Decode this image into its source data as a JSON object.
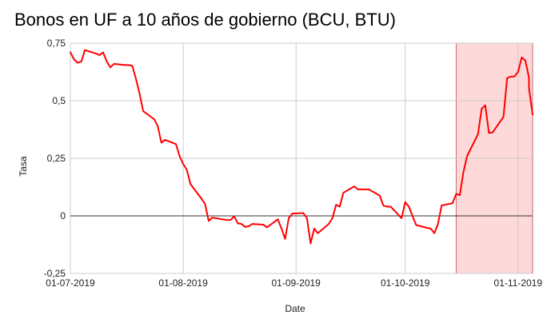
{
  "chart_data": {
    "type": "line",
    "title": "Bonos en UF a 10 años de gobierno (BCU, BTU)",
    "xlabel": "Date",
    "ylabel": "Tasa",
    "x_range": [
      "2019-07-01",
      "2019-11-05"
    ],
    "ylim": [
      -0.25,
      0.75
    ],
    "y_ticks": [
      {
        "value": 0.75,
        "label": "0,75"
      },
      {
        "value": 0.5,
        "label": "0,5"
      },
      {
        "value": 0.25,
        "label": "0,25"
      },
      {
        "value": 0,
        "label": "0"
      },
      {
        "value": -0.25,
        "label": "-0,25"
      }
    ],
    "x_ticks": [
      {
        "date": "2019-07-01",
        "label": "01-07-2019"
      },
      {
        "date": "2019-08-01",
        "label": "01-08-2019"
      },
      {
        "date": "2019-09-01",
        "label": "01-09-2019"
      },
      {
        "date": "2019-10-01",
        "label": "01-10-2019"
      },
      {
        "date": "2019-11-01",
        "label": "01-11-2019"
      }
    ],
    "grid": true,
    "highlight": {
      "from": "2019-10-15",
      "to": "2019-11-05",
      "color": "#fdd9d9",
      "border_color": "#c4686b"
    },
    "series": [
      {
        "color": "#ff0000",
        "points": [
          {
            "x": "2019-07-01",
            "y": 0.71
          },
          {
            "x": "2019-07-02",
            "y": 0.68
          },
          {
            "x": "2019-07-03",
            "y": 0.665
          },
          {
            "x": "2019-07-04",
            "y": 0.67
          },
          {
            "x": "2019-07-05",
            "y": 0.72
          },
          {
            "x": "2019-07-08",
            "y": 0.705
          },
          {
            "x": "2019-07-09",
            "y": 0.698
          },
          {
            "x": "2019-07-10",
            "y": 0.71
          },
          {
            "x": "2019-07-11",
            "y": 0.67
          },
          {
            "x": "2019-07-12",
            "y": 0.645
          },
          {
            "x": "2019-07-13",
            "y": 0.66
          },
          {
            "x": "2019-07-16",
            "y": 0.655
          },
          {
            "x": "2019-07-17",
            "y": 0.655
          },
          {
            "x": "2019-07-18",
            "y": 0.652
          },
          {
            "x": "2019-07-19",
            "y": 0.596
          },
          {
            "x": "2019-07-20",
            "y": 0.532
          },
          {
            "x": "2019-07-21",
            "y": 0.455
          },
          {
            "x": "2019-07-24",
            "y": 0.42
          },
          {
            "x": "2019-07-25",
            "y": 0.39
          },
          {
            "x": "2019-07-26",
            "y": 0.318
          },
          {
            "x": "2019-07-27",
            "y": 0.33
          },
          {
            "x": "2019-07-30",
            "y": 0.312
          },
          {
            "x": "2019-07-31",
            "y": 0.26
          },
          {
            "x": "2019-08-01",
            "y": 0.225
          },
          {
            "x": "2019-08-02",
            "y": 0.2
          },
          {
            "x": "2019-08-03",
            "y": 0.138
          },
          {
            "x": "2019-08-06",
            "y": 0.075
          },
          {
            "x": "2019-08-07",
            "y": 0.052
          },
          {
            "x": "2019-08-08",
            "y": -0.022
          },
          {
            "x": "2019-08-09",
            "y": -0.008
          },
          {
            "x": "2019-08-13",
            "y": -0.018
          },
          {
            "x": "2019-08-14",
            "y": -0.018
          },
          {
            "x": "2019-08-15",
            "y": -0.002
          },
          {
            "x": "2019-08-16",
            "y": -0.032
          },
          {
            "x": "2019-08-17",
            "y": -0.035
          },
          {
            "x": "2019-08-18",
            "y": -0.048
          },
          {
            "x": "2019-08-19",
            "y": -0.045
          },
          {
            "x": "2019-08-20",
            "y": -0.035
          },
          {
            "x": "2019-08-23",
            "y": -0.038
          },
          {
            "x": "2019-08-24",
            "y": -0.05
          },
          {
            "x": "2019-08-27",
            "y": -0.015
          },
          {
            "x": "2019-08-28",
            "y": -0.055
          },
          {
            "x": "2019-08-29",
            "y": -0.1
          },
          {
            "x": "2019-08-30",
            "y": -0.01
          },
          {
            "x": "2019-08-31",
            "y": 0.01
          },
          {
            "x": "2019-09-03",
            "y": 0.012
          },
          {
            "x": "2019-09-04",
            "y": -0.01
          },
          {
            "x": "2019-09-05",
            "y": -0.12
          },
          {
            "x": "2019-09-06",
            "y": -0.055
          },
          {
            "x": "2019-09-07",
            "y": -0.075
          },
          {
            "x": "2019-09-10",
            "y": -0.035
          },
          {
            "x": "2019-09-11",
            "y": -0.01
          },
          {
            "x": "2019-09-12",
            "y": 0.048
          },
          {
            "x": "2019-09-13",
            "y": 0.04
          },
          {
            "x": "2019-09-14",
            "y": 0.1
          },
          {
            "x": "2019-09-17",
            "y": 0.128
          },
          {
            "x": "2019-09-18",
            "y": 0.115
          },
          {
            "x": "2019-09-21",
            "y": 0.115
          },
          {
            "x": "2019-09-24",
            "y": 0.088
          },
          {
            "x": "2019-09-25",
            "y": 0.045
          },
          {
            "x": "2019-09-26",
            "y": 0.04
          },
          {
            "x": "2019-09-27",
            "y": 0.04
          },
          {
            "x": "2019-09-30",
            "y": -0.01
          },
          {
            "x": "2019-10-01",
            "y": 0.06
          },
          {
            "x": "2019-10-02",
            "y": 0.04
          },
          {
            "x": "2019-10-03",
            "y": 0.0
          },
          {
            "x": "2019-10-04",
            "y": -0.04
          },
          {
            "x": "2019-10-07",
            "y": -0.052
          },
          {
            "x": "2019-10-08",
            "y": -0.055
          },
          {
            "x": "2019-10-09",
            "y": -0.075
          },
          {
            "x": "2019-10-10",
            "y": -0.035
          },
          {
            "x": "2019-10-11",
            "y": 0.045
          },
          {
            "x": "2019-10-14",
            "y": 0.055
          },
          {
            "x": "2019-10-15",
            "y": 0.095
          },
          {
            "x": "2019-10-16",
            "y": 0.09
          },
          {
            "x": "2019-10-17",
            "y": 0.19
          },
          {
            "x": "2019-10-18",
            "y": 0.26
          },
          {
            "x": "2019-10-21",
            "y": 0.355
          },
          {
            "x": "2019-10-22",
            "y": 0.465
          },
          {
            "x": "2019-10-23",
            "y": 0.48
          },
          {
            "x": "2019-10-24",
            "y": 0.36
          },
          {
            "x": "2019-10-25",
            "y": 0.362
          },
          {
            "x": "2019-10-28",
            "y": 0.43
          },
          {
            "x": "2019-10-29",
            "y": 0.598
          },
          {
            "x": "2019-10-30",
            "y": 0.605
          },
          {
            "x": "2019-10-31",
            "y": 0.605
          },
          {
            "x": "2019-11-01",
            "y": 0.625
          },
          {
            "x": "2019-11-02",
            "y": 0.688
          },
          {
            "x": "2019-11-03",
            "y": 0.675
          },
          {
            "x": "2019-11-04",
            "y": 0.6
          },
          {
            "x": "2019-11-04",
            "y": 0.555
          },
          {
            "x": "2019-11-05",
            "y": 0.44
          }
        ]
      }
    ]
  }
}
